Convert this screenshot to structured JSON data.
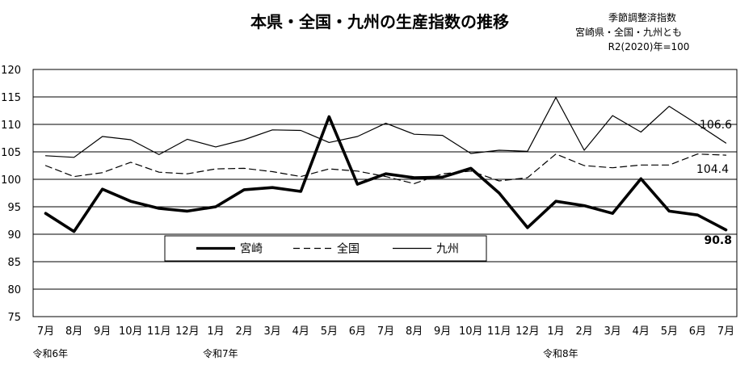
{
  "chart_data": {
    "type": "line",
    "title": "本県・全国・九州の生産指数の推移",
    "notes": [
      "季節調整済指数",
      "宮崎県・全国・九州とも",
      "R2(2020)年=100"
    ],
    "categories": [
      "7月",
      "8月",
      "9月",
      "10月",
      "11月",
      "12月",
      "1月",
      "2月",
      "3月",
      "4月",
      "5月",
      "6月",
      "7月",
      "8月",
      "9月",
      "10月",
      "11月",
      "12月",
      "1月",
      "2月",
      "3月",
      "4月",
      "5月",
      "6月",
      "7月"
    ],
    "era_labels": [
      {
        "index": 0,
        "label": "令和6年"
      },
      {
        "index": 6,
        "label": "令和7年"
      },
      {
        "index": 18,
        "label": "令和8年"
      }
    ],
    "ylim": [
      75,
      120
    ],
    "yticks": [
      75,
      80,
      85,
      90,
      95,
      100,
      105,
      110,
      115,
      120
    ],
    "grid": "horizontal",
    "legend_position": "center-left",
    "series": [
      {
        "name": "宮崎",
        "style": "thick",
        "values": [
          93.8,
          90.5,
          98.2,
          96.0,
          94.7,
          94.2,
          95.0,
          98.1,
          98.5,
          97.8,
          111.4,
          99.1,
          101.0,
          100.3,
          100.4,
          102.0,
          97.5,
          91.2,
          96.0,
          95.2,
          93.8,
          100.1,
          94.2,
          93.5,
          90.8
        ]
      },
      {
        "name": "全国",
        "style": "dashed",
        "values": [
          102.5,
          100.5,
          101.2,
          103.1,
          101.3,
          101.0,
          101.9,
          102.0,
          101.4,
          100.5,
          101.9,
          101.5,
          100.5,
          99.2,
          101.0,
          101.5,
          99.7,
          100.3,
          104.6,
          102.5,
          102.1,
          102.6,
          102.6,
          104.6,
          104.4
        ]
      },
      {
        "name": "九州",
        "style": "thin",
        "values": [
          104.3,
          104.0,
          107.8,
          107.2,
          104.5,
          107.3,
          105.9,
          107.2,
          109.0,
          108.9,
          106.7,
          107.8,
          110.2,
          108.2,
          108.0,
          104.7,
          105.3,
          105.1,
          114.9,
          105.3,
          111.6,
          108.6,
          113.3,
          110.0,
          106.6
        ]
      }
    ],
    "end_labels": [
      {
        "series": "九州",
        "text": "106.6"
      },
      {
        "series": "全国",
        "text": "104.4"
      },
      {
        "series": "宮崎",
        "text": "90.8"
      }
    ]
  }
}
